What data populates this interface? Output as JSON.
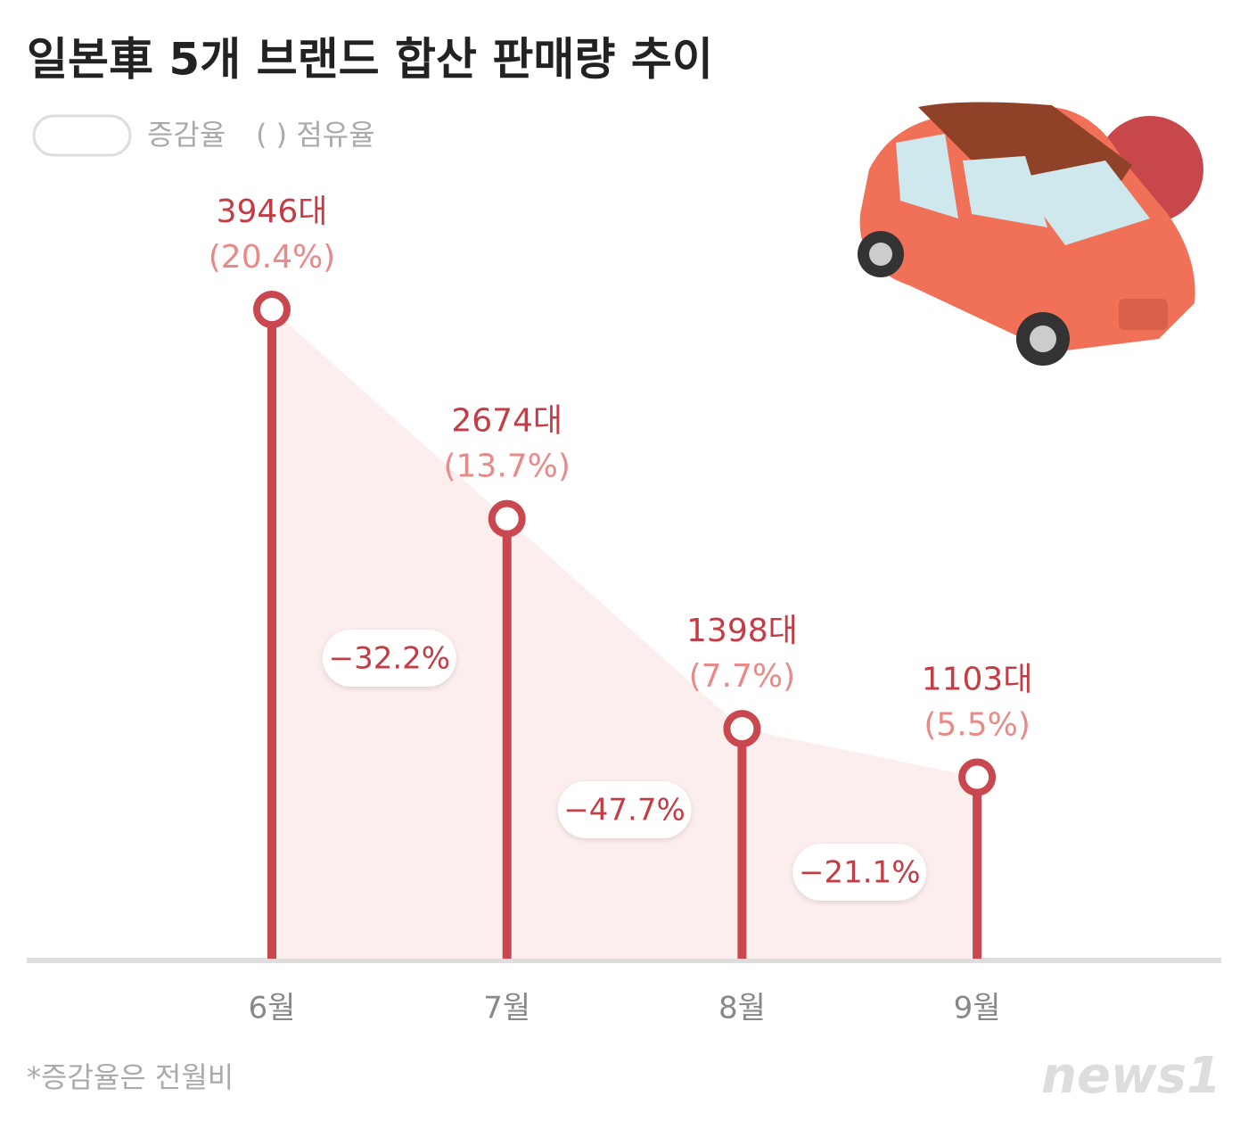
{
  "chart_data": {
    "type": "lollipop",
    "title": "일본車 5개 브랜드 합산 판매량 추이",
    "legend": {
      "change": "증감율",
      "share": "( ) 점유율"
    },
    "categories": [
      "6월",
      "7월",
      "8월",
      "9월"
    ],
    "values": [
      3946,
      2674,
      1398,
      1103
    ],
    "value_labels": [
      "3946대",
      "2674대",
      "1398대",
      "1103대"
    ],
    "share_labels": [
      "(20.4%)",
      "(13.7%)",
      "(7.7%)",
      "(5.5%)"
    ],
    "change_labels": [
      "−32.2%",
      "−47.7%",
      "−21.1%"
    ],
    "color": "#c9474f",
    "footnote": "*증감율은 전월비",
    "source": "news1"
  }
}
